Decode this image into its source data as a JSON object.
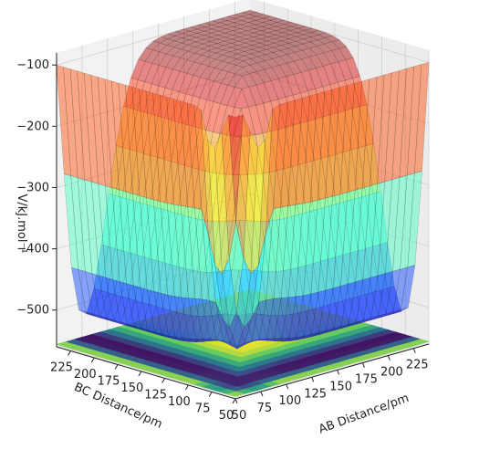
{
  "chart_data": {
    "type": "surface3d",
    "title": "",
    "xlabel": "AB Distance/pm",
    "ylabel": "BC Distance/pm",
    "zlabel": "V/kJ.mol⁻¹",
    "x_ticks": [
      50,
      75,
      100,
      125,
      150,
      175,
      200,
      225
    ],
    "y_ticks": [
      50,
      75,
      100,
      125,
      150,
      175,
      200,
      225
    ],
    "z_ticks": [
      -100,
      -200,
      -300,
      -400,
      -500
    ],
    "xlim": [
      50,
      240
    ],
    "ylim": [
      50,
      240
    ],
    "zlim": [
      -560,
      -80
    ],
    "grid": true,
    "surface_colormap": "jet (translucent) with black mesh lines",
    "contour_floor_colormap": "viridis",
    "surface_samples": {
      "asymptote_value": -100,
      "well_minimum": -545,
      "reactant_valley_value": -430,
      "product_valley_value": -430,
      "saddle_near": {
        "ab": 90,
        "bc": 90,
        "v": -410
      }
    },
    "colors": {
      "mesh": "#1a1a1a",
      "pane": "#f2f2f2",
      "grid": "#d0d0d0"
    }
  }
}
